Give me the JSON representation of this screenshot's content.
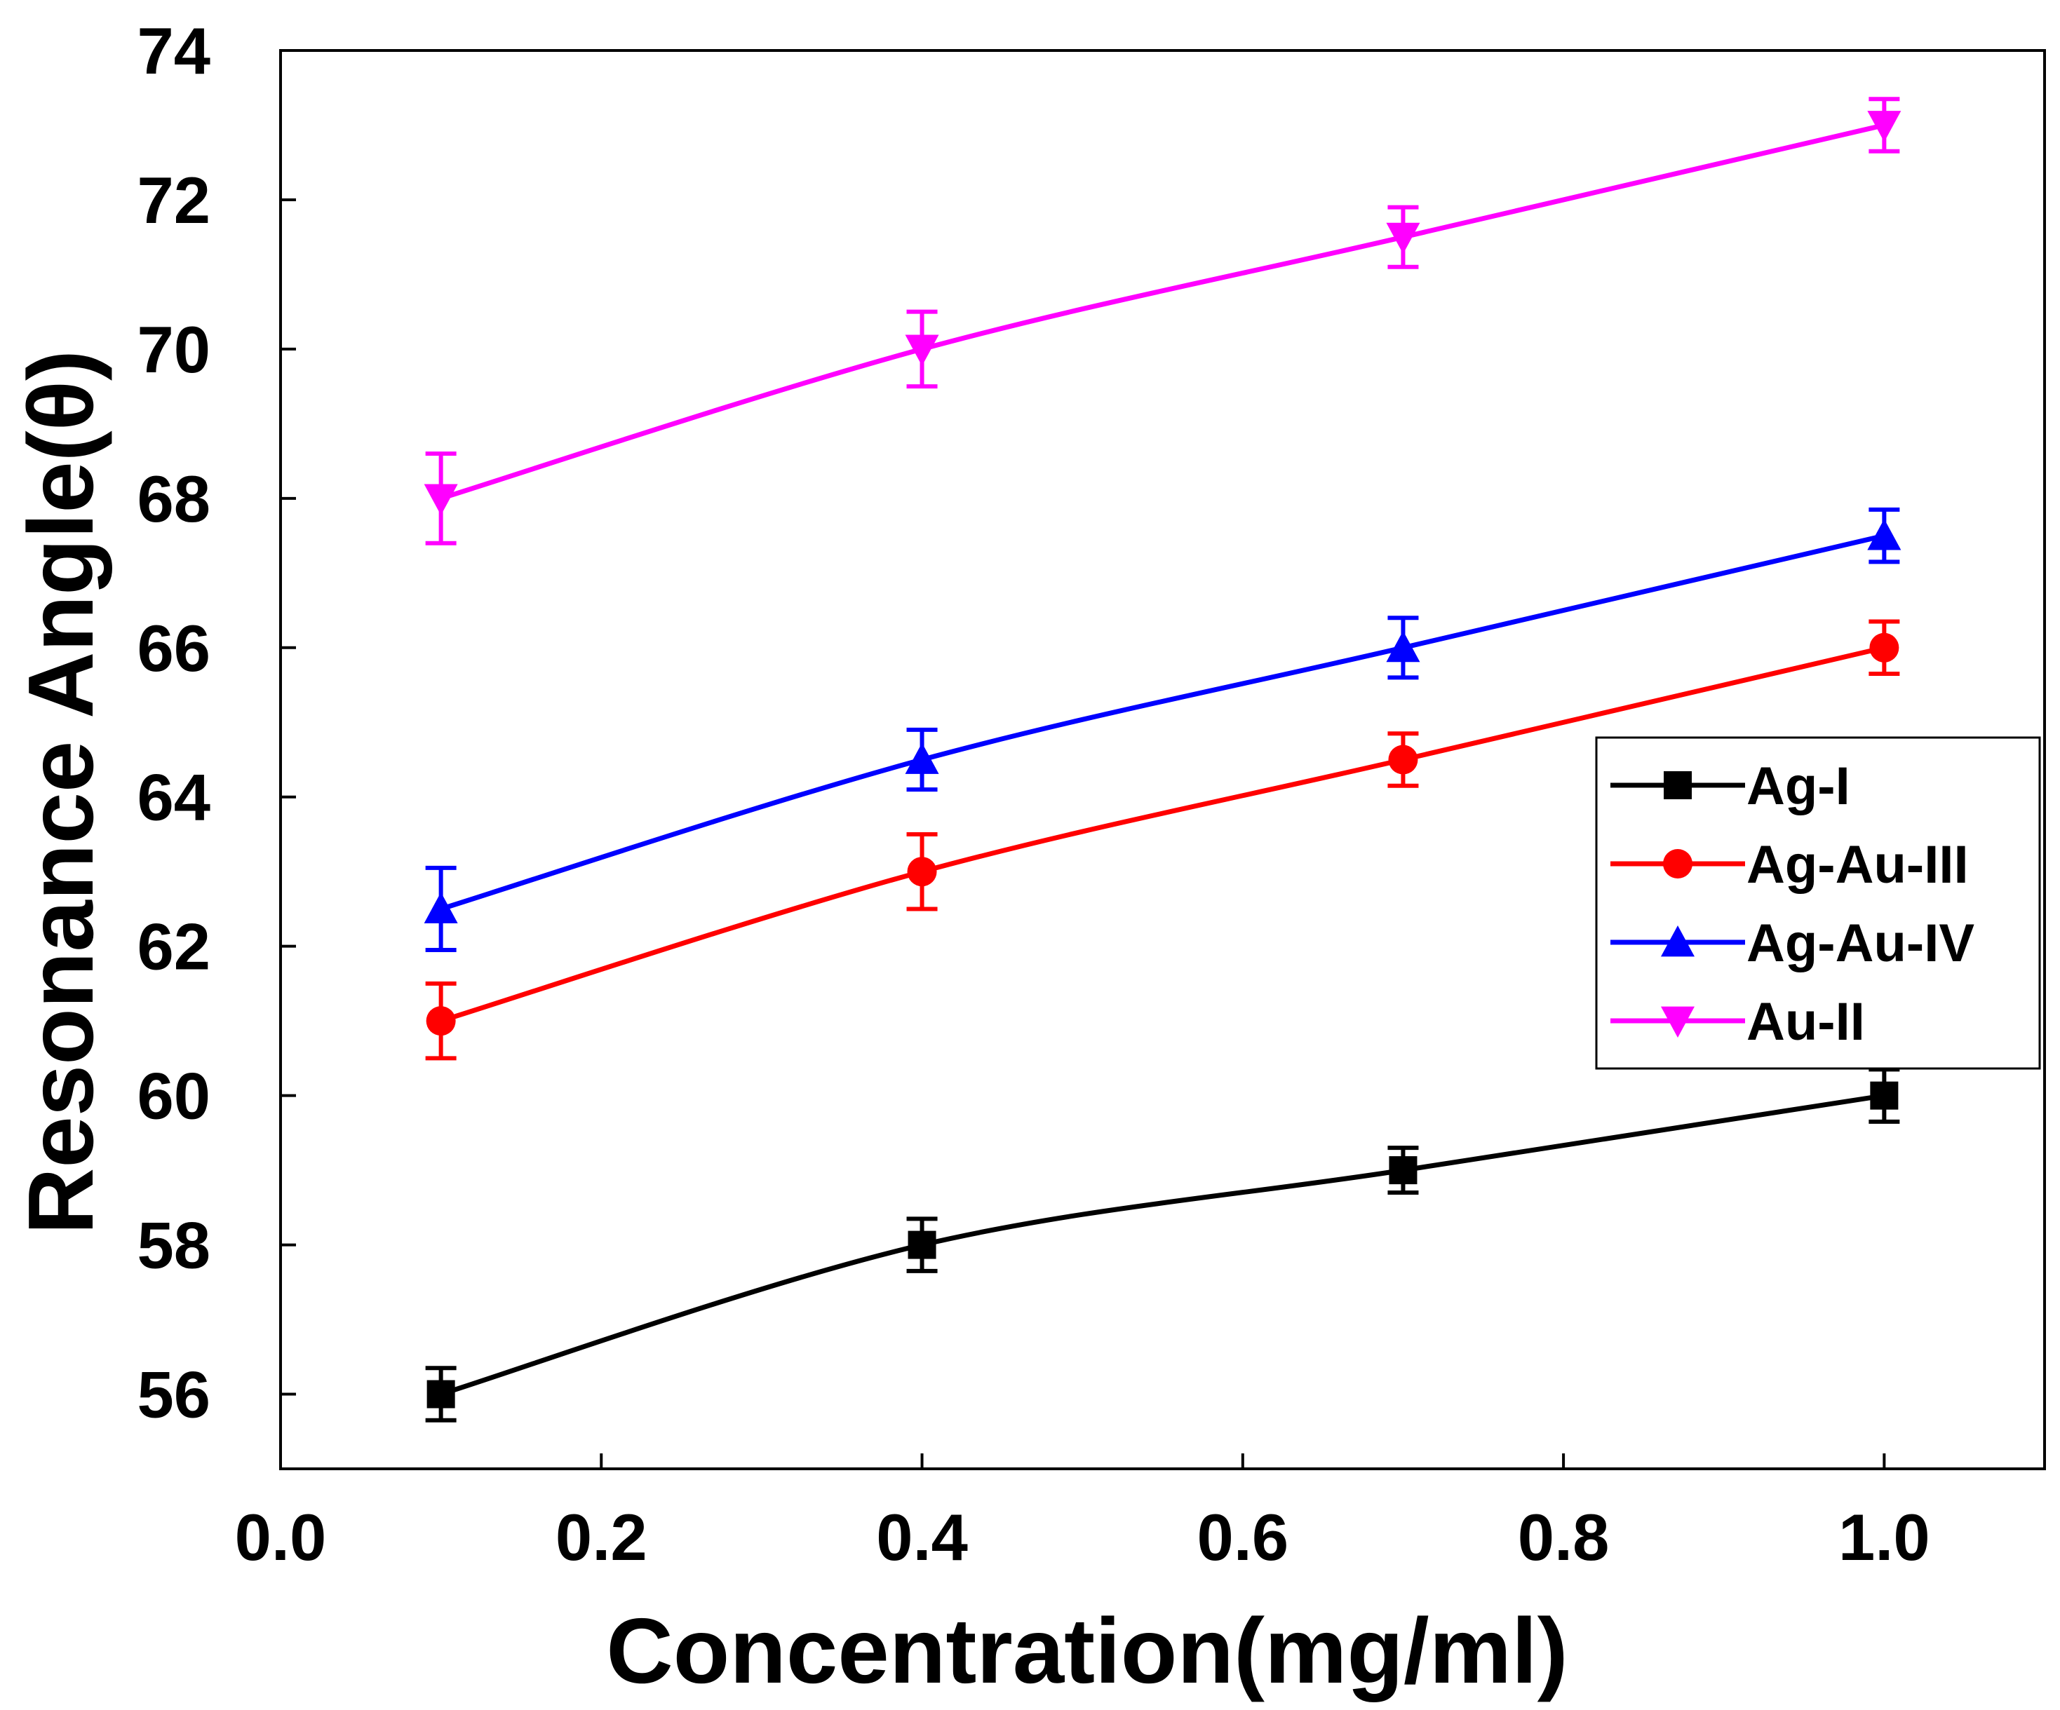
{
  "chart_data": {
    "type": "line",
    "xlabel": "Concentration(mg/ml)",
    "ylabel": "Resonance Angle(θ)",
    "xlim": [
      0.0,
      1.1
    ],
    "ylim": [
      55,
      74
    ],
    "xticks": [
      "0.0",
      "0.2",
      "0.4",
      "0.6",
      "0.8",
      "1.0"
    ],
    "yticks": [
      "56",
      "58",
      "60",
      "62",
      "64",
      "66",
      "68",
      "70",
      "72",
      "74"
    ],
    "x": [
      0.1,
      0.4,
      0.7,
      1.0
    ],
    "legend_position": "right",
    "series": [
      {
        "name": "Ag-I",
        "color": "#000000",
        "marker": "square",
        "values": [
          56.0,
          58.0,
          59.0,
          60.0
        ],
        "errors": [
          0.35,
          0.35,
          0.3,
          0.35
        ]
      },
      {
        "name": "Ag-Au-III",
        "color": "#ff0000",
        "marker": "circle",
        "values": [
          61.0,
          63.0,
          64.5,
          66.0
        ],
        "errors": [
          0.5,
          0.5,
          0.35,
          0.35
        ]
      },
      {
        "name": "Ag-Au-IV",
        "color": "#0000ff",
        "marker": "triangle-up",
        "values": [
          62.5,
          64.5,
          66.0,
          67.5
        ],
        "errors": [
          0.55,
          0.4,
          0.4,
          0.35
        ]
      },
      {
        "name": "Au-II",
        "color": "#ff00ff",
        "marker": "triangle-down",
        "values": [
          68.0,
          70.0,
          71.5,
          73.0
        ],
        "errors": [
          0.6,
          0.5,
          0.4,
          0.35
        ]
      }
    ]
  }
}
